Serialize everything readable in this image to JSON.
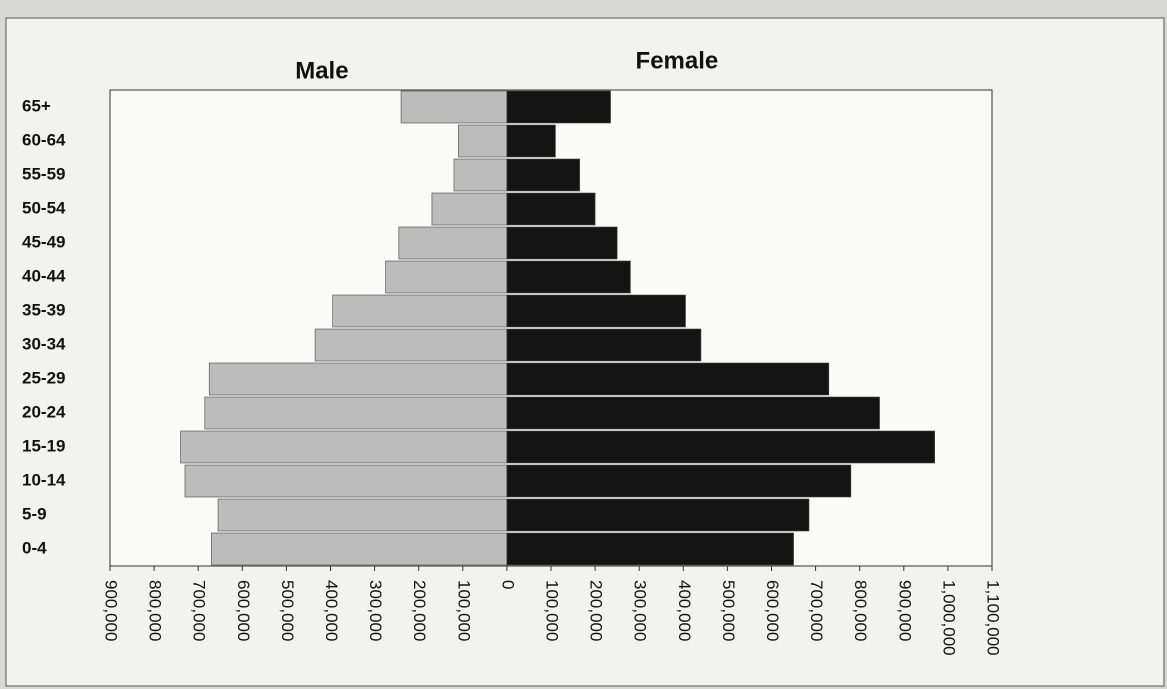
{
  "chart_data": {
    "type": "pyramid",
    "categories": [
      "65+",
      "60-64",
      "55-59",
      "50-54",
      "45-49",
      "40-44",
      "35-39",
      "30-34",
      "25-29",
      "20-24",
      "15-19",
      "10-14",
      "5-9",
      "0-4"
    ],
    "series": [
      {
        "name": "Male",
        "color": "#bcbcbc",
        "values": [
          -240000,
          -110000,
          -120000,
          -170000,
          -245000,
          -275000,
          -395000,
          -435000,
          -675000,
          -685000,
          -740000,
          -730000,
          -655000,
          -670000
        ]
      },
      {
        "name": "Female",
        "color": "#141414",
        "values": [
          235000,
          110000,
          165000,
          200000,
          250000,
          280000,
          405000,
          440000,
          730000,
          845000,
          970000,
          780000,
          685000,
          650000
        ]
      }
    ],
    "xlim": [
      -900000,
      1100000
    ],
    "xticks": [
      {
        "value": -900000,
        "label": "900,000"
      },
      {
        "value": -800000,
        "label": "800,000"
      },
      {
        "value": -700000,
        "label": "700,000"
      },
      {
        "value": -600000,
        "label": "600,000"
      },
      {
        "value": -500000,
        "label": "500,000"
      },
      {
        "value": -400000,
        "label": "400,000"
      },
      {
        "value": -300000,
        "label": "300,000"
      },
      {
        "value": -200000,
        "label": "200,000"
      },
      {
        "value": -100000,
        "label": "100,000"
      },
      0,
      {
        "value": 100000,
        "label": "100,000"
      },
      {
        "value": 200000,
        "label": "200,000"
      },
      {
        "value": 300000,
        "label": "300,000"
      },
      {
        "value": 400000,
        "label": "400,000"
      },
      {
        "value": 500000,
        "label": "500,000"
      },
      {
        "value": 600000,
        "label": "600,000"
      },
      {
        "value": 700000,
        "label": "700,000"
      },
      {
        "value": 800000,
        "label": "800,000"
      },
      {
        "value": 900000,
        "label": "900,000"
      },
      {
        "value": 1000000,
        "label": "1,000,000"
      },
      {
        "value": 1100000,
        "label": "1,100,000"
      }
    ]
  }
}
